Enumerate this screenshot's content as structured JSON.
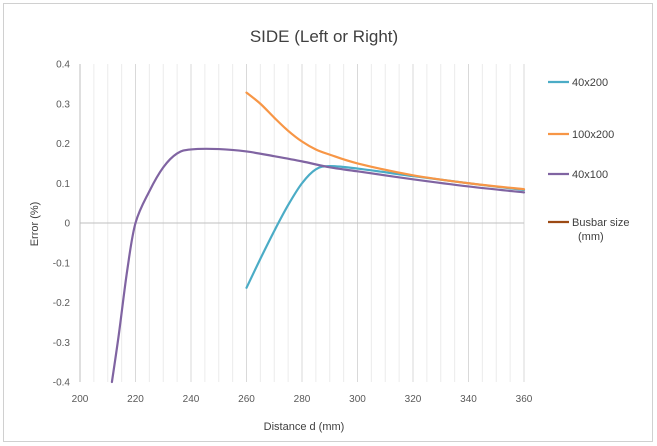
{
  "chart_data": {
    "type": "line",
    "title": "SIDE (Left or Right)",
    "xlabel": "Distance d  (mm)",
    "ylabel": "Error (%)",
    "xlim": [
      200,
      360
    ],
    "ylim": [
      -0.4,
      0.4
    ],
    "x_ticks": [
      200,
      220,
      240,
      260,
      280,
      300,
      320,
      340,
      360
    ],
    "y_ticks": [
      -0.4,
      -0.3,
      -0.2,
      -0.1,
      0,
      0.1,
      0.2,
      0.3,
      0.4
    ],
    "x_tick_labels": [
      "200",
      "220",
      "240",
      "260",
      "280",
      "300",
      "320",
      "340",
      "360"
    ],
    "y_tick_labels": [
      "-0.4",
      "-0.3",
      "-0.2",
      "-0.1",
      "0",
      "0.1",
      "0.2",
      "0.3",
      "0.4"
    ],
    "grid": "vertical",
    "legend_position": "right",
    "series": [
      {
        "name": "40x200",
        "color": "#4bacc6",
        "points": [
          [
            260,
            -0.163
          ],
          [
            265,
            -0.09
          ],
          [
            270,
            -0.02
          ],
          [
            275,
            0.045
          ],
          [
            280,
            0.1
          ],
          [
            285,
            0.135
          ],
          [
            290,
            0.143
          ],
          [
            300,
            0.137
          ],
          [
            320,
            0.118
          ],
          [
            340,
            0.1
          ],
          [
            360,
            0.083
          ]
        ]
      },
      {
        "name": "100x200",
        "color": "#f79646",
        "points": [
          [
            260,
            0.328
          ],
          [
            265,
            0.3
          ],
          [
            270,
            0.265
          ],
          [
            275,
            0.232
          ],
          [
            280,
            0.205
          ],
          [
            285,
            0.185
          ],
          [
            290,
            0.172
          ],
          [
            300,
            0.15
          ],
          [
            320,
            0.12
          ],
          [
            340,
            0.1
          ],
          [
            360,
            0.085
          ]
        ]
      },
      {
        "name": "40x100",
        "color": "#8064a2",
        "points": [
          [
            211.5,
            -0.4
          ],
          [
            214,
            -0.28
          ],
          [
            217,
            -0.12
          ],
          [
            220,
            0.0
          ],
          [
            225,
            0.08
          ],
          [
            230,
            0.14
          ],
          [
            235,
            0.175
          ],
          [
            240,
            0.185
          ],
          [
            250,
            0.186
          ],
          [
            260,
            0.18
          ],
          [
            270,
            0.168
          ],
          [
            280,
            0.155
          ],
          [
            290,
            0.14
          ],
          [
            300,
            0.13
          ],
          [
            320,
            0.11
          ],
          [
            340,
            0.092
          ],
          [
            360,
            0.077
          ]
        ]
      },
      {
        "name": "Busbar size (mm)",
        "label_lines": [
          "Busbar size",
          "(mm)"
        ],
        "color": "#9c4a14",
        "points": []
      }
    ]
  }
}
